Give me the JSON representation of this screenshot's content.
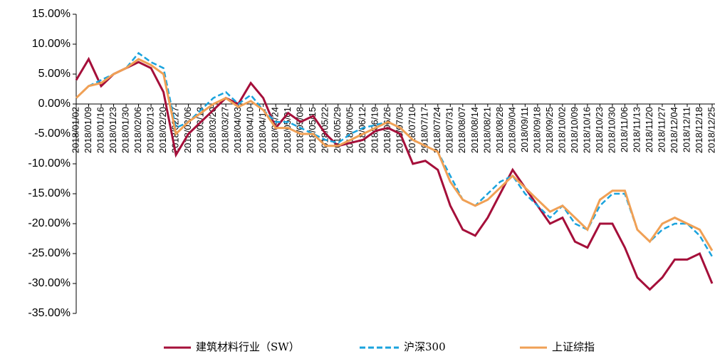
{
  "chart_data": {
    "type": "line",
    "categories": [
      "2018/01/02",
      "2018/01/09",
      "2018/01/16",
      "2018/01/23",
      "2018/01/30",
      "2018/02/06",
      "2018/02/13",
      "2018/02/20",
      "2018/02/27",
      "2018/03/06",
      "2018/03/13",
      "2018/03/20",
      "2018/03/27",
      "2018/04/03",
      "2018/04/10",
      "2018/04/17",
      "2018/04/24",
      "2018/05/01",
      "2018/05/08",
      "2018/05/15",
      "2018/05/22",
      "2018/05/29",
      "2018/06/05",
      "2018/06/12",
      "2018/06/19",
      "2018/06/26",
      "2018/07/03",
      "2018/07/10",
      "2018/07/17",
      "2018/07/24",
      "2018/07/31",
      "2018/08/07",
      "2018/08/14",
      "2018/08/21",
      "2018/08/28",
      "2018/09/04",
      "2018/09/11",
      "2018/09/18",
      "2018/09/25",
      "2018/10/02",
      "2018/10/09",
      "2018/10/16",
      "2018/10/23",
      "2018/10/30",
      "2018/11/06",
      "2018/11/13",
      "2018/11/20",
      "2018/11/27",
      "2018/12/04",
      "2018/12/11",
      "2018/12/18",
      "2018/12/25"
    ],
    "series": [
      {
        "name": "建筑材料行业（SW）",
        "color": "#a50f3a",
        "dash": false,
        "values": [
          4,
          7.5,
          3,
          5,
          6,
          7,
          6,
          2,
          -8.5,
          -5,
          -3,
          -1,
          1,
          0,
          3.5,
          1,
          -4,
          -1.5,
          -3,
          -2,
          -5,
          -7,
          -6.5,
          -6,
          -4.5,
          -4,
          -5,
          -10,
          -9.5,
          -11,
          -17,
          -21,
          -22,
          -19,
          -15,
          -11,
          -14,
          -17,
          -20,
          -19,
          -23,
          -24,
          -20,
          -20,
          -24,
          -29,
          -31,
          -29,
          -26,
          -26,
          -25,
          -30
        ]
      },
      {
        "name": "沪深300",
        "color": "#1aa3dd",
        "dash": true,
        "values": [
          1,
          3,
          4,
          5,
          6,
          8.5,
          7,
          6,
          -4,
          -3,
          -1,
          1,
          2,
          0,
          1.5,
          -1,
          -3,
          -3,
          -4,
          -5,
          -6,
          -6.5,
          -5,
          -4,
          -3.5,
          -3,
          -4,
          -6,
          -7,
          -8,
          -12,
          -16,
          -17,
          -15,
          -13,
          -12,
          -15,
          -17,
          -19,
          -17,
          -20,
          -21,
          -17,
          -15,
          -15,
          -21,
          -23,
          -21,
          -20,
          -20,
          -22,
          -25.5
        ]
      },
      {
        "name": "上证综指",
        "color": "#f0a055",
        "dash": false,
        "values": [
          1,
          3,
          3.5,
          5,
          6,
          7.5,
          6.5,
          5,
          -5,
          -3,
          -1.5,
          0,
          1,
          -0.5,
          0.5,
          -1,
          -4,
          -4,
          -5,
          -5,
          -7,
          -7,
          -6,
          -5,
          -4,
          -3,
          -4,
          -6,
          -7,
          -8,
          -13,
          -16,
          -17,
          -16,
          -14,
          -12,
          -14,
          -16,
          -18,
          -17,
          -19,
          -21,
          -16,
          -14.5,
          -14.5,
          -21,
          -23,
          -20,
          -19,
          -20,
          -21,
          -24.5
        ]
      }
    ],
    "ylim": [
      -35,
      15
    ],
    "yticks": [
      {
        "value": 15,
        "label": "15.00%"
      },
      {
        "value": 10,
        "label": "10.00%"
      },
      {
        "value": 5,
        "label": "5.00%"
      },
      {
        "value": 0,
        "label": "0.00%"
      },
      {
        "value": -5,
        "label": "-5.00%"
      },
      {
        "value": -10,
        "label": "-10.00%"
      },
      {
        "value": -15,
        "label": "-15.00%"
      },
      {
        "value": -20,
        "label": "-20.00%"
      },
      {
        "value": -25,
        "label": "-25.00%"
      },
      {
        "value": -30,
        "label": "-30.00%"
      },
      {
        "value": -35,
        "label": "-35.00%"
      }
    ],
    "grid": false,
    "legend": "bottom"
  }
}
